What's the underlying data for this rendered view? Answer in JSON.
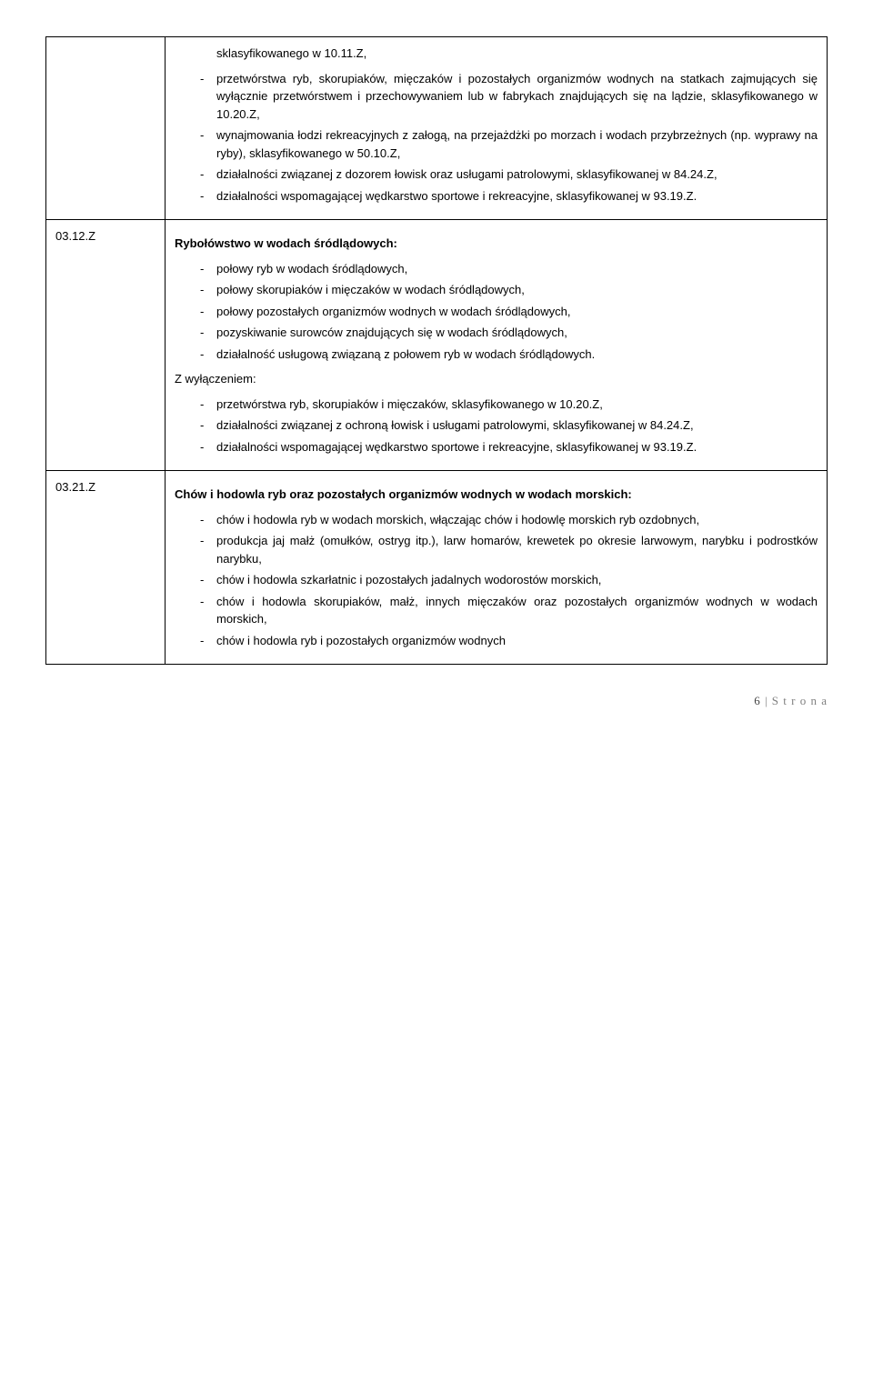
{
  "rows": [
    {
      "code": "",
      "title": "",
      "intro": "sklasyfikowanego w 10.11.Z,",
      "blocks": [
        {
          "type": "list",
          "items": [
            "przetwórstwa ryb, skorupiaków, mięczaków i pozostałych organizmów wodnych na statkach zajmujących się wyłącznie przetwórstwem i przechowywaniem lub w fabrykach znajdujących się na lądzie, sklasyfikowanego w 10.20.Z,",
            "wynajmowania łodzi rekreacyjnych z załogą, na przejażdżki po morzach i wodach przybrzeżnych (np. wyprawy na ryby), sklasyfikowanego w 50.10.Z,",
            "działalności związanej z dozorem łowisk oraz usługami patrolowymi, sklasyfikowanej w 84.24.Z,",
            "działalności wspomagającej wędkarstwo sportowe i rekreacyjne, sklasyfikowanej w 93.19.Z."
          ]
        }
      ]
    },
    {
      "code": "03.12.Z",
      "title": "Rybołówstwo w wodach śródlądowych:",
      "blocks": [
        {
          "type": "list",
          "items": [
            "połowy ryb w wodach śródlądowych,",
            "połowy skorupiaków i mięczaków w wodach śródlądowych,",
            "połowy pozostałych organizmów wodnych w wodach śródlądowych,",
            "pozyskiwanie surowców znajdujących się w wodach śródlądowych,",
            "działalność usługową związaną z połowem ryb w wodach śródlądowych."
          ]
        },
        {
          "type": "heading",
          "text": "Z wyłączeniem:"
        },
        {
          "type": "list",
          "items": [
            "przetwórstwa ryb, skorupiaków i mięczaków, sklasyfikowanego w 10.20.Z,",
            "działalności związanej z ochroną łowisk i usługami patrolowymi, sklasyfikowanej w 84.24.Z,",
            "działalności wspomagającej wędkarstwo sportowe i rekreacyjne, sklasyfikowanej w 93.19.Z."
          ]
        }
      ]
    },
    {
      "code": "03.21.Z",
      "title": "Chów i hodowla ryb oraz pozostałych organizmów wodnych w wodach morskich:",
      "blocks": [
        {
          "type": "list",
          "items": [
            "chów i hodowla ryb w wodach morskich, włączając chów i hodowlę morskich ryb ozdobnych,",
            "produkcja jaj małż (omułków, ostryg itp.), larw homarów, krewetek po okresie larwowym, narybku i podrostków narybku,",
            "chów i hodowla szkarłatnic i pozostałych jadalnych wodorostów morskich,",
            "chów i hodowla skorupiaków, małż, innych mięczaków oraz pozostałych organizmów  wodnych w wodach morskich,",
            "chów i hodowla ryb i pozostałych organizmów wodnych"
          ]
        }
      ]
    }
  ],
  "footer": {
    "page": "6",
    "sep": " | ",
    "label": "S t r o n a"
  }
}
